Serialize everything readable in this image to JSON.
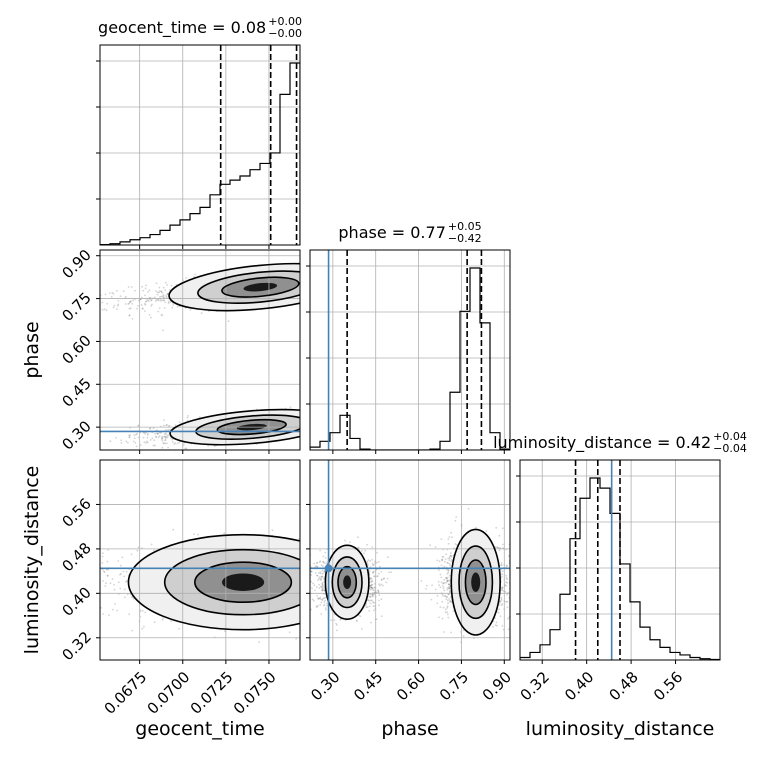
{
  "chart_data": {
    "type": "corner",
    "parameters": [
      "geocent_time",
      "phase",
      "luminosity_distance"
    ],
    "ranges": {
      "geocent_time": [
        0.0652,
        0.0768
      ],
      "phase": [
        0.22,
        0.92
      ],
      "luminosity_distance": [
        0.28,
        0.64
      ]
    },
    "truths": {
      "geocent_time": null,
      "phase": 0.285,
      "luminosity_distance": 0.445
    },
    "truth_color": "#4682b4",
    "grid": true,
    "titles": [
      {
        "param": "geocent_time",
        "label": "geocent_time = 0.08",
        "sup": "+0.00",
        "sub": "−0.00"
      },
      {
        "param": "phase",
        "label": "phase = 0.77",
        "sup": "+0.05",
        "sub": "−0.42"
      },
      {
        "param": "luminosity_distance",
        "label": "luminosity_distance = 0.42",
        "sup": "+0.04",
        "sub": "−0.04"
      }
    ],
    "axis_labels": {
      "x": [
        "geocent_time",
        "phase",
        "luminosity_distance"
      ],
      "y": [
        "phase",
        "luminosity_distance"
      ]
    },
    "ticks": {
      "geocent_time": [
        "0.0675",
        "0.0700",
        "0.0725",
        "0.0750"
      ],
      "geocent_time_values": [
        0.0675,
        0.07,
        0.0725,
        0.075
      ],
      "phase": [
        "0.30",
        "0.45",
        "0.60",
        "0.75",
        "0.90"
      ],
      "phase_values": [
        0.3,
        0.45,
        0.6,
        0.75,
        0.9
      ],
      "luminosity_distance": [
        "0.32",
        "0.40",
        "0.48",
        "0.56"
      ],
      "luminosity_distance_values": [
        0.32,
        0.4,
        0.48,
        0.56
      ]
    },
    "quantiles": {
      "geocent_time": [
        0.0722,
        0.0751,
        0.0766
      ],
      "phase": [
        0.35,
        0.77,
        0.82
      ],
      "luminosity_distance": [
        0.38,
        0.42,
        0.46
      ]
    },
    "histograms": {
      "geocent_time": {
        "edges": [
          0.0652,
          0.06578,
          0.06636,
          0.06694,
          0.06752,
          0.0681,
          0.06868,
          0.06926,
          0.06984,
          0.07042,
          0.071,
          0.07158,
          0.07216,
          0.07274,
          0.07332,
          0.0739,
          0.07448,
          0.07506,
          0.07564,
          0.07622,
          0.0768
        ],
        "counts": [
          0.2,
          0.6,
          1.5,
          2.5,
          3.5,
          5,
          7,
          9.5,
          12,
          15,
          18,
          24,
          29,
          31,
          33,
          36,
          39,
          44,
          72,
          87
        ]
      },
      "phase": {
        "edges": [
          0.22,
          0.255,
          0.29,
          0.325,
          0.36,
          0.395,
          0.43,
          0.465,
          0.5,
          0.535,
          0.57,
          0.605,
          0.64,
          0.675,
          0.71,
          0.745,
          0.78,
          0.815,
          0.85,
          0.885,
          0.92
        ],
        "counts": [
          1,
          3,
          6,
          12,
          4,
          0.3,
          0,
          0,
          0,
          0,
          0,
          0,
          0.3,
          3,
          20,
          48,
          63,
          44,
          6,
          0.3
        ]
      },
      "luminosity_distance": {
        "edges": [
          0.28,
          0.298,
          0.316,
          0.334,
          0.352,
          0.37,
          0.388,
          0.406,
          0.424,
          0.442,
          0.46,
          0.478,
          0.496,
          0.514,
          0.532,
          0.55,
          0.568,
          0.586,
          0.604,
          0.622,
          0.64
        ],
        "counts": [
          1,
          3,
          6,
          12,
          26,
          48,
          64,
          72,
          68,
          58,
          38,
          23,
          13,
          8,
          5,
          3,
          2,
          1,
          0.5,
          0.2
        ]
      }
    },
    "joint_modes": {
      "phase_vs_geocent_time": [
        {
          "x_center": 0.0745,
          "y_center": 0.79,
          "x_spread": 0.0028,
          "y_spread": 0.04,
          "slope": 6.0
        },
        {
          "x_center": 0.074,
          "y_center": 0.3,
          "x_spread": 0.0025,
          "y_spread": 0.03,
          "slope": 5.0
        }
      ],
      "luminosity_distance_vs_geocent_time": [
        {
          "x_center": 0.0735,
          "y_center": 0.42,
          "x_spread": 0.0035,
          "y_spread": 0.045
        }
      ],
      "luminosity_distance_vs_phase": [
        {
          "x_center": 0.35,
          "y_center": 0.42,
          "x_spread": 0.04,
          "y_spread": 0.035
        },
        {
          "x_center": 0.8,
          "y_center": 0.42,
          "x_spread": 0.045,
          "y_spread": 0.05
        }
      ]
    }
  }
}
